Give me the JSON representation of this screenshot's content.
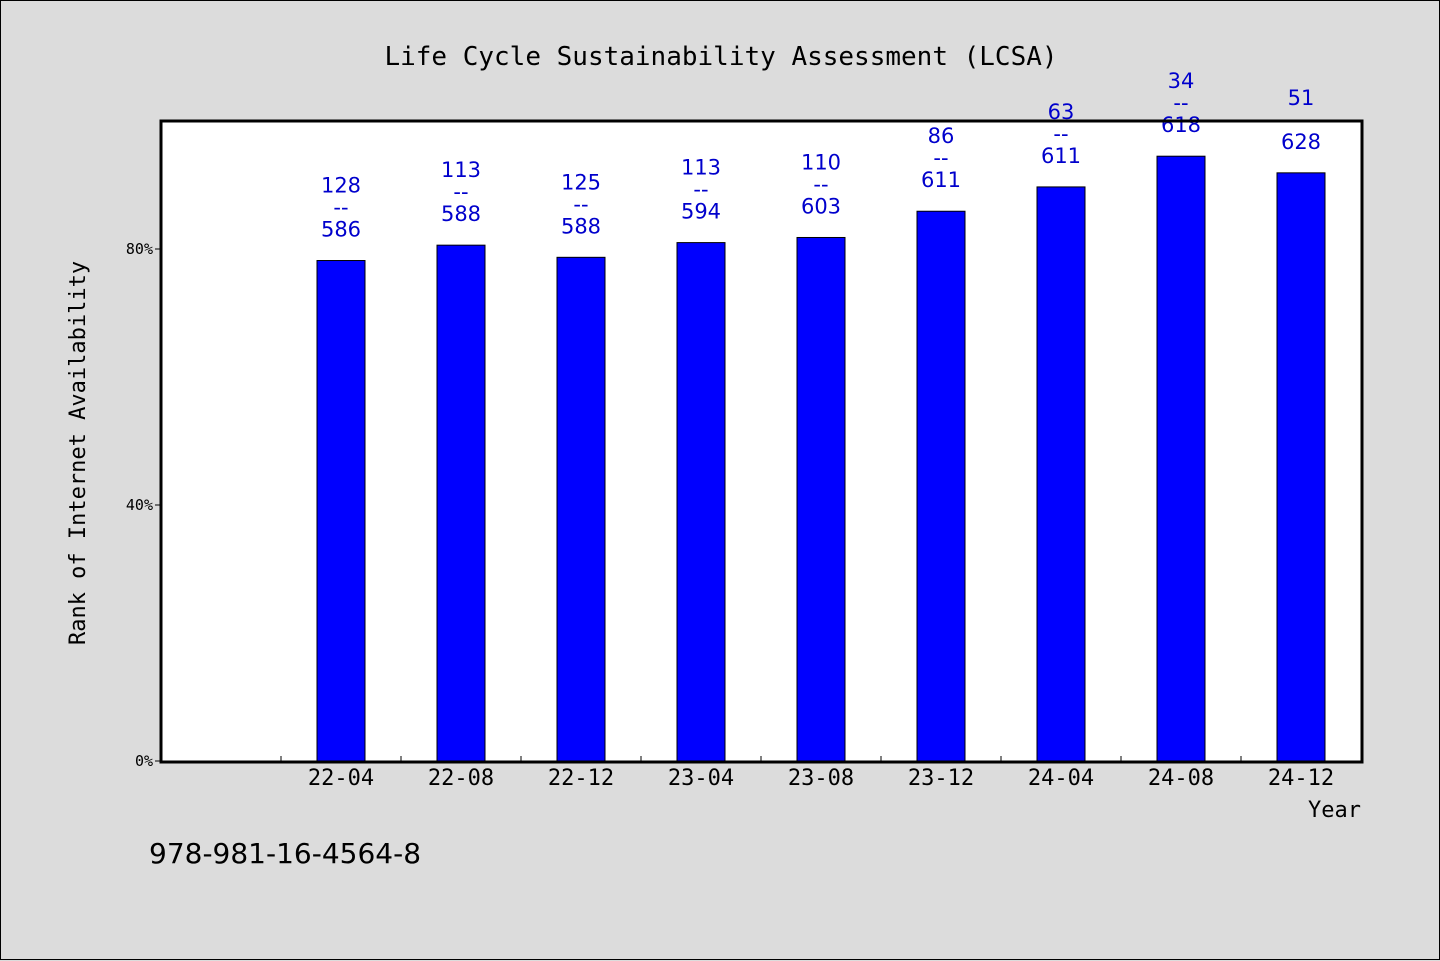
{
  "chart_data": {
    "type": "bar",
    "title": "Life Cycle Sustainability Assessment (LCSA)",
    "xlabel": "Year",
    "ylabel": "Rank of Internet Availability",
    "categories": [
      "22-04",
      "22-08",
      "22-12",
      "23-04",
      "23-08",
      "23-12",
      "24-04",
      "24-08",
      "24-12"
    ],
    "values": [
      78.2,
      80.6,
      78.7,
      81.0,
      81.8,
      85.9,
      89.7,
      94.5,
      91.9
    ],
    "ranks": [
      "128",
      "113",
      "125",
      "113",
      "110",
      "86",
      "63",
      "34",
      "51"
    ],
    "totals": [
      "586",
      "588",
      "588",
      "594",
      "603",
      "611",
      "611",
      "618",
      "628"
    ],
    "label_separator": "--",
    "yticks": [
      "0%",
      "40%",
      "80%"
    ],
    "ytick_values": [
      0,
      40,
      80
    ],
    "ylim": [
      0,
      100
    ],
    "grid": false,
    "bar_color": "#0000ff",
    "label_color": "#0000cc"
  },
  "footer": {
    "isbn": "978-981-16-4564-8"
  }
}
